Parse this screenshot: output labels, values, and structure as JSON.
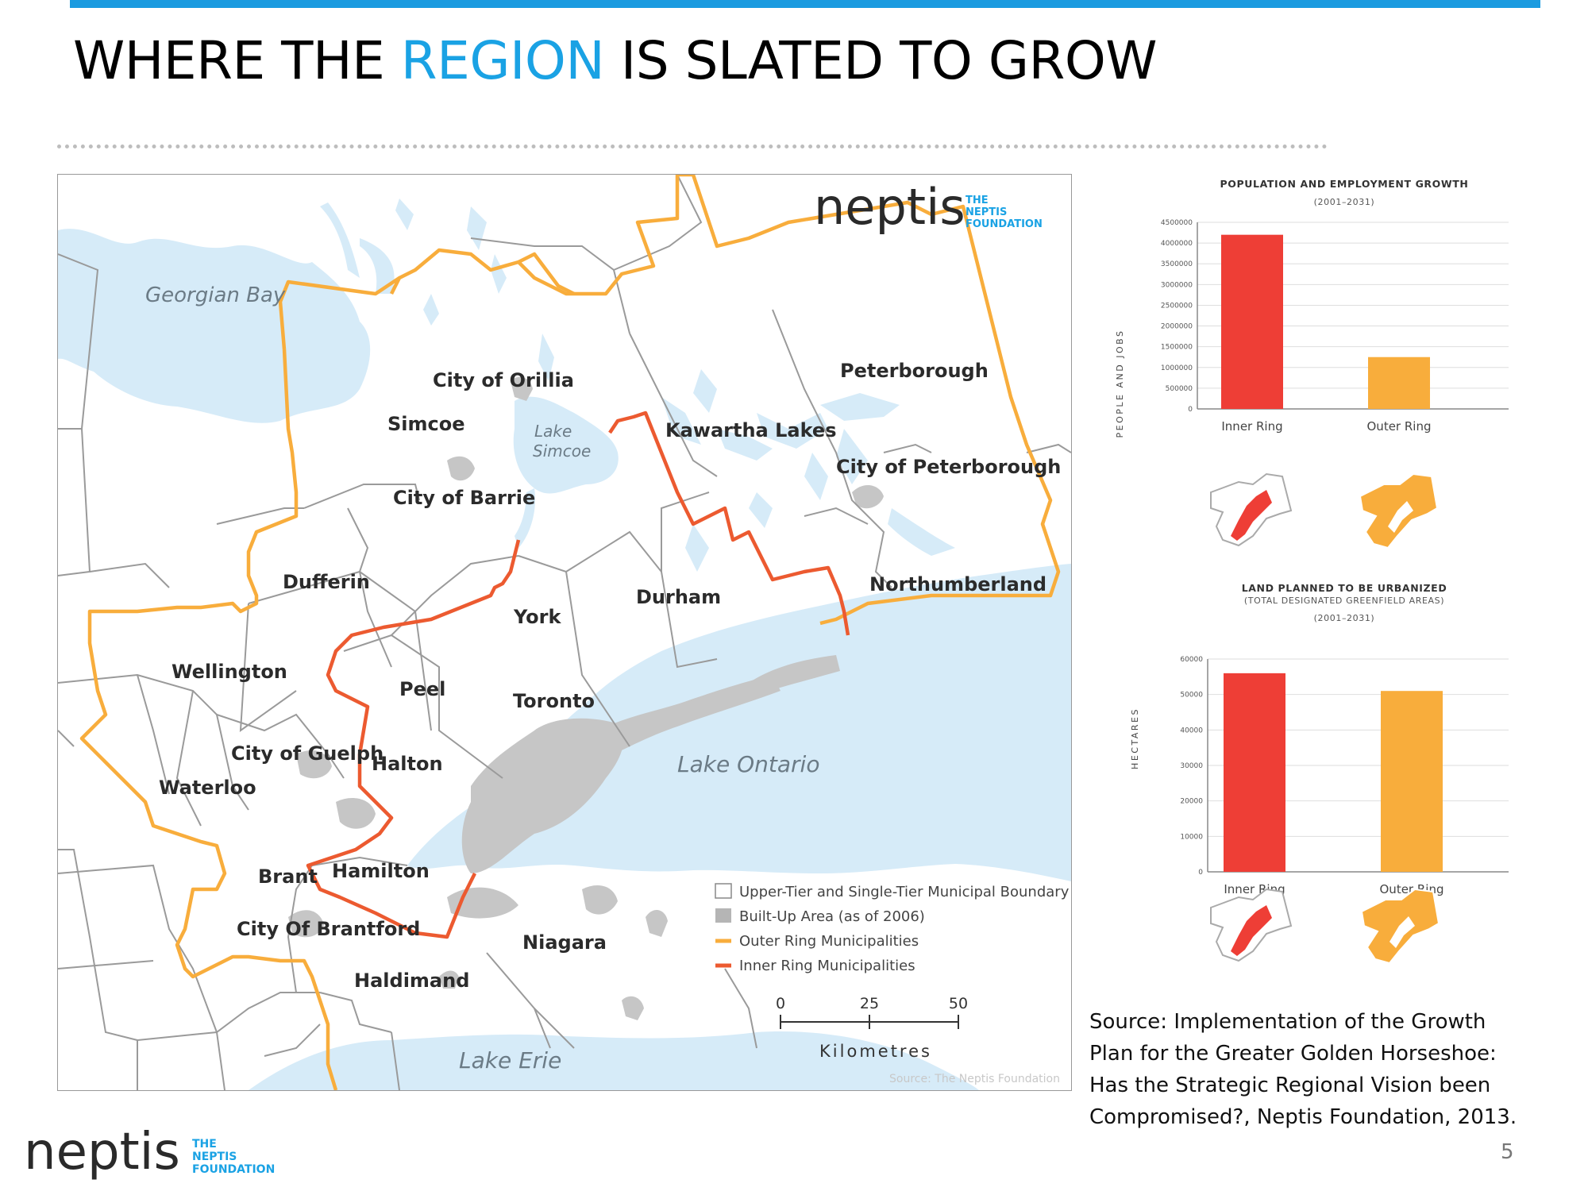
{
  "slide": {
    "title_part1": "WHERE THE ",
    "title_accent": "REGION",
    "title_part2": " IS SLATED TO GROW",
    "slide_number": "5",
    "source_text": "Source: Implementation of the Growth Plan for the Greater Golden Horseshoe: Has the Strategic Regional Vision been Compromised?, Neptis Foundation, 2013."
  },
  "logo": {
    "word": "neptis",
    "line1": "THE",
    "line2": "NEPTIS",
    "line3": "FOUNDATION"
  },
  "map": {
    "labels": {
      "georgian_bay": "Georgian Bay",
      "lake_simcoe_1": "Lake",
      "lake_simcoe_2": "Simcoe",
      "lake_ontario": "Lake Ontario",
      "lake_erie": "Lake Erie",
      "orillia": "City of Orillia",
      "simcoe": "Simcoe",
      "barrie": "City of Barrie",
      "kawartha": "Kawartha Lakes",
      "peterborough": "Peterborough",
      "city_peterborough": "City of Peterborough",
      "dufferin": "Dufferin",
      "durham": "Durham",
      "northumberland": "Northumberland",
      "york": "York",
      "wellington": "Wellington",
      "peel": "Peel",
      "toronto": "Toronto",
      "guelph": "City of Guelph",
      "halton": "Halton",
      "waterloo": "Waterloo",
      "brant": "Brant",
      "hamilton": "Hamilton",
      "brantford": "City Of Brantford",
      "niagara": "Niagara",
      "haldimand": "Haldimand"
    },
    "legend": [
      "Upper-Tier and Single-Tier Municipal Boundary",
      "Built-Up Area (as of 2006)",
      "Outer Ring Municipalities",
      "Inner Ring Municipalities"
    ],
    "scale": {
      "ticks": [
        "0",
        "25",
        "50"
      ],
      "unit": "Kilometres"
    },
    "credit": "Source: The Neptis Foundation",
    "colors": {
      "water": "#d6ebf8",
      "outer_ring": "#f8ad3c",
      "inner_ring": "#ec5a30",
      "built_up": "#c6c6c6",
      "boundary": "#9a9a9a"
    }
  },
  "chart_data": [
    {
      "type": "bar",
      "title": "POPULATION AND EMPLOYMENT GROWTH",
      "subtitle": "(2001–2031)",
      "ylabel": "PEOPLE AND JOBS",
      "categories": [
        "Inner Ring",
        "Outer Ring"
      ],
      "values": [
        4200000,
        1250000
      ],
      "yticks": [
        0,
        500000,
        1000000,
        1500000,
        2000000,
        2500000,
        3000000,
        3500000,
        4000000,
        4500000
      ],
      "ylim": [
        0,
        4500000
      ],
      "colors": [
        "#ee3e36",
        "#f8ad3c"
      ],
      "grid": true
    },
    {
      "type": "bar",
      "title": "LAND PLANNED TO BE URBANIZED",
      "subtitle1": "(TOTAL DESIGNATED GREENFIELD AREAS)",
      "subtitle": "(2001–2031)",
      "ylabel": "HECTARES",
      "categories": [
        "Inner Ring",
        "Outer Ring"
      ],
      "values": [
        56000,
        51000
      ],
      "yticks": [
        0,
        10000,
        20000,
        30000,
        40000,
        50000,
        60000
      ],
      "ylim": [
        0,
        60000
      ],
      "colors": [
        "#ee3e36",
        "#f8ad3c"
      ],
      "grid": true
    }
  ]
}
